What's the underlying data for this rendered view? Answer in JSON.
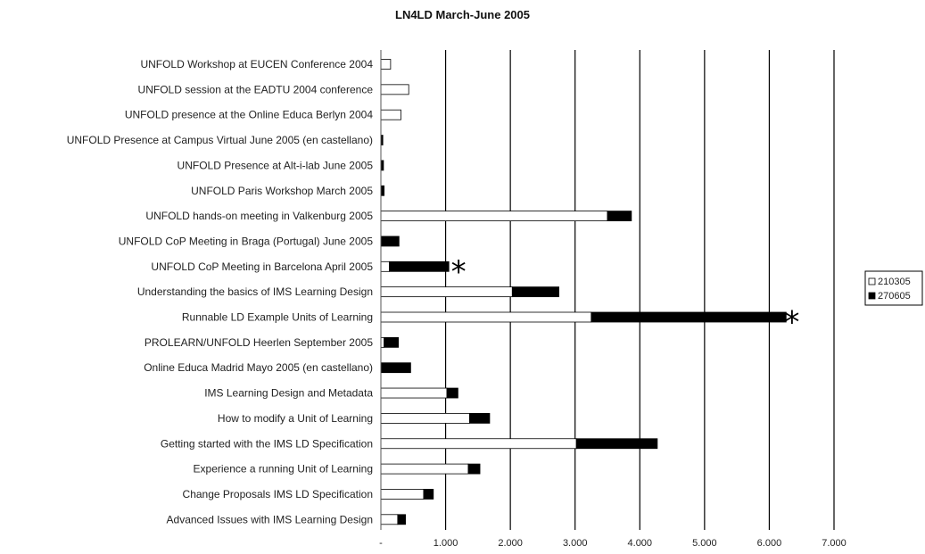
{
  "chart_data": {
    "type": "bar",
    "orientation": "horizontal",
    "stacked": true,
    "title": "LN4LD March-June 2005",
    "xlabel": "",
    "ylabel": "",
    "xlim": [
      0,
      7000
    ],
    "x_ticks": [
      0,
      1000,
      2000,
      3000,
      4000,
      5000,
      6000,
      7000
    ],
    "x_tick_labels": [
      "-",
      "1.000",
      "2.000",
      "3.000",
      "4.000",
      "5.000",
      "6.000",
      "7.000"
    ],
    "grid": "vertical major gridlines",
    "legend_position": "right",
    "categories": [
      "UNFOLD Workshop at EUCEN Conference 2004",
      "UNFOLD session at the EADTU 2004 conference",
      "UNFOLD presence at the Online Educa Berlyn 2004",
      "UNFOLD Presence at Campus Virtual June 2005 (en castellano)",
      "UNFOLD Presence at Alt-i-lab June 2005",
      "UNFOLD Paris Workshop March 2005",
      "UNFOLD hands-on meeting in Valkenburg 2005",
      "UNFOLD CoP Meeting in Braga (Portugal) June 2005",
      "UNFOLD CoP Meeting in Barcelona April 2005",
      "Understanding the basics of IMS Learning Design",
      "Runnable LD Example Units of Learning",
      "PROLEARN/UNFOLD Heerlen September 2005",
      "Online Educa Madrid Mayo 2005 (en castellano)",
      "IMS Learning Design and Metadata",
      "How to modify a Unit of Learning",
      "Getting started with the IMS LD Specification",
      "Experience a running Unit of Learning",
      "Change Proposals IMS LD Specification",
      "Advanced Issues with IMS Learning Design"
    ],
    "series": [
      {
        "name": "210305",
        "color": "#ffffff",
        "values": [
          150,
          430,
          310,
          0,
          0,
          0,
          3500,
          0,
          130,
          2030,
          3250,
          50,
          0,
          1020,
          1370,
          3020,
          1350,
          660,
          260
        ]
      },
      {
        "name": "270605",
        "color": "#000000",
        "values": [
          0,
          0,
          0,
          30,
          40,
          50,
          370,
          280,
          920,
          720,
          3010,
          220,
          460,
          170,
          310,
          1250,
          180,
          150,
          120
        ]
      }
    ],
    "annotations": [
      {
        "text": "*",
        "category": "UNFOLD CoP Meeting in Barcelona April 2005",
        "x": 1200
      },
      {
        "text": "*",
        "category": "Runnable LD Example Units of Learning",
        "x": 6350
      }
    ]
  }
}
